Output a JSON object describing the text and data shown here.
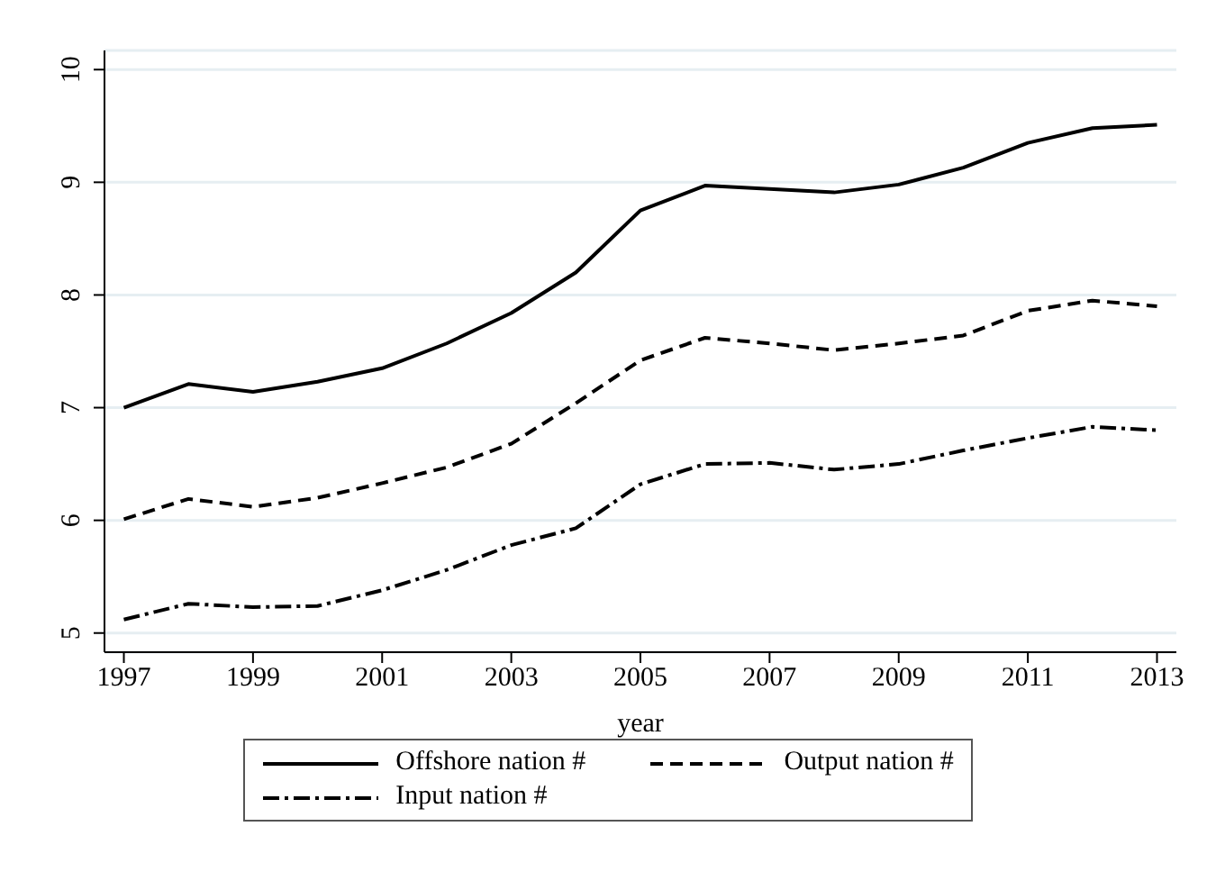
{
  "chart_data": {
    "type": "line",
    "xlabel": "year",
    "x": [
      1997,
      1998,
      1999,
      2000,
      2001,
      2002,
      2003,
      2004,
      2005,
      2006,
      2007,
      2008,
      2009,
      2010,
      2011,
      2012,
      2013
    ],
    "series": [
      {
        "name": "Offshore nation #",
        "color": "#000000",
        "line_style": "solid",
        "values": [
          7.0,
          7.21,
          7.14,
          7.23,
          7.35,
          7.57,
          7.84,
          8.2,
          8.75,
          8.97,
          8.94,
          8.91,
          8.98,
          9.13,
          9.35,
          9.48,
          9.51
        ]
      },
      {
        "name": "Output nation #",
        "color": "#000000",
        "line_style": "dashed",
        "values": [
          6.01,
          6.19,
          6.12,
          6.2,
          6.33,
          6.47,
          6.68,
          7.04,
          7.42,
          7.62,
          7.57,
          7.51,
          7.57,
          7.64,
          7.86,
          7.95,
          7.9
        ]
      },
      {
        "name": "Input nation #",
        "color": "#000000",
        "line_style": "dashdot",
        "values": [
          5.12,
          5.26,
          5.23,
          5.24,
          5.38,
          5.56,
          5.78,
          5.93,
          6.32,
          6.5,
          6.51,
          6.45,
          6.5,
          6.62,
          6.73,
          6.83,
          6.8
        ]
      }
    ],
    "xlim": [
      1996.7,
      2013.3
    ],
    "xticks": [
      1997,
      1999,
      2001,
      2003,
      2005,
      2007,
      2009,
      2011,
      2013
    ],
    "ylim": [
      4.83,
      10.17
    ],
    "yticks": [
      5,
      6,
      7,
      8,
      9,
      10
    ],
    "grid": "y",
    "legend": "bottom",
    "marker": "none"
  }
}
